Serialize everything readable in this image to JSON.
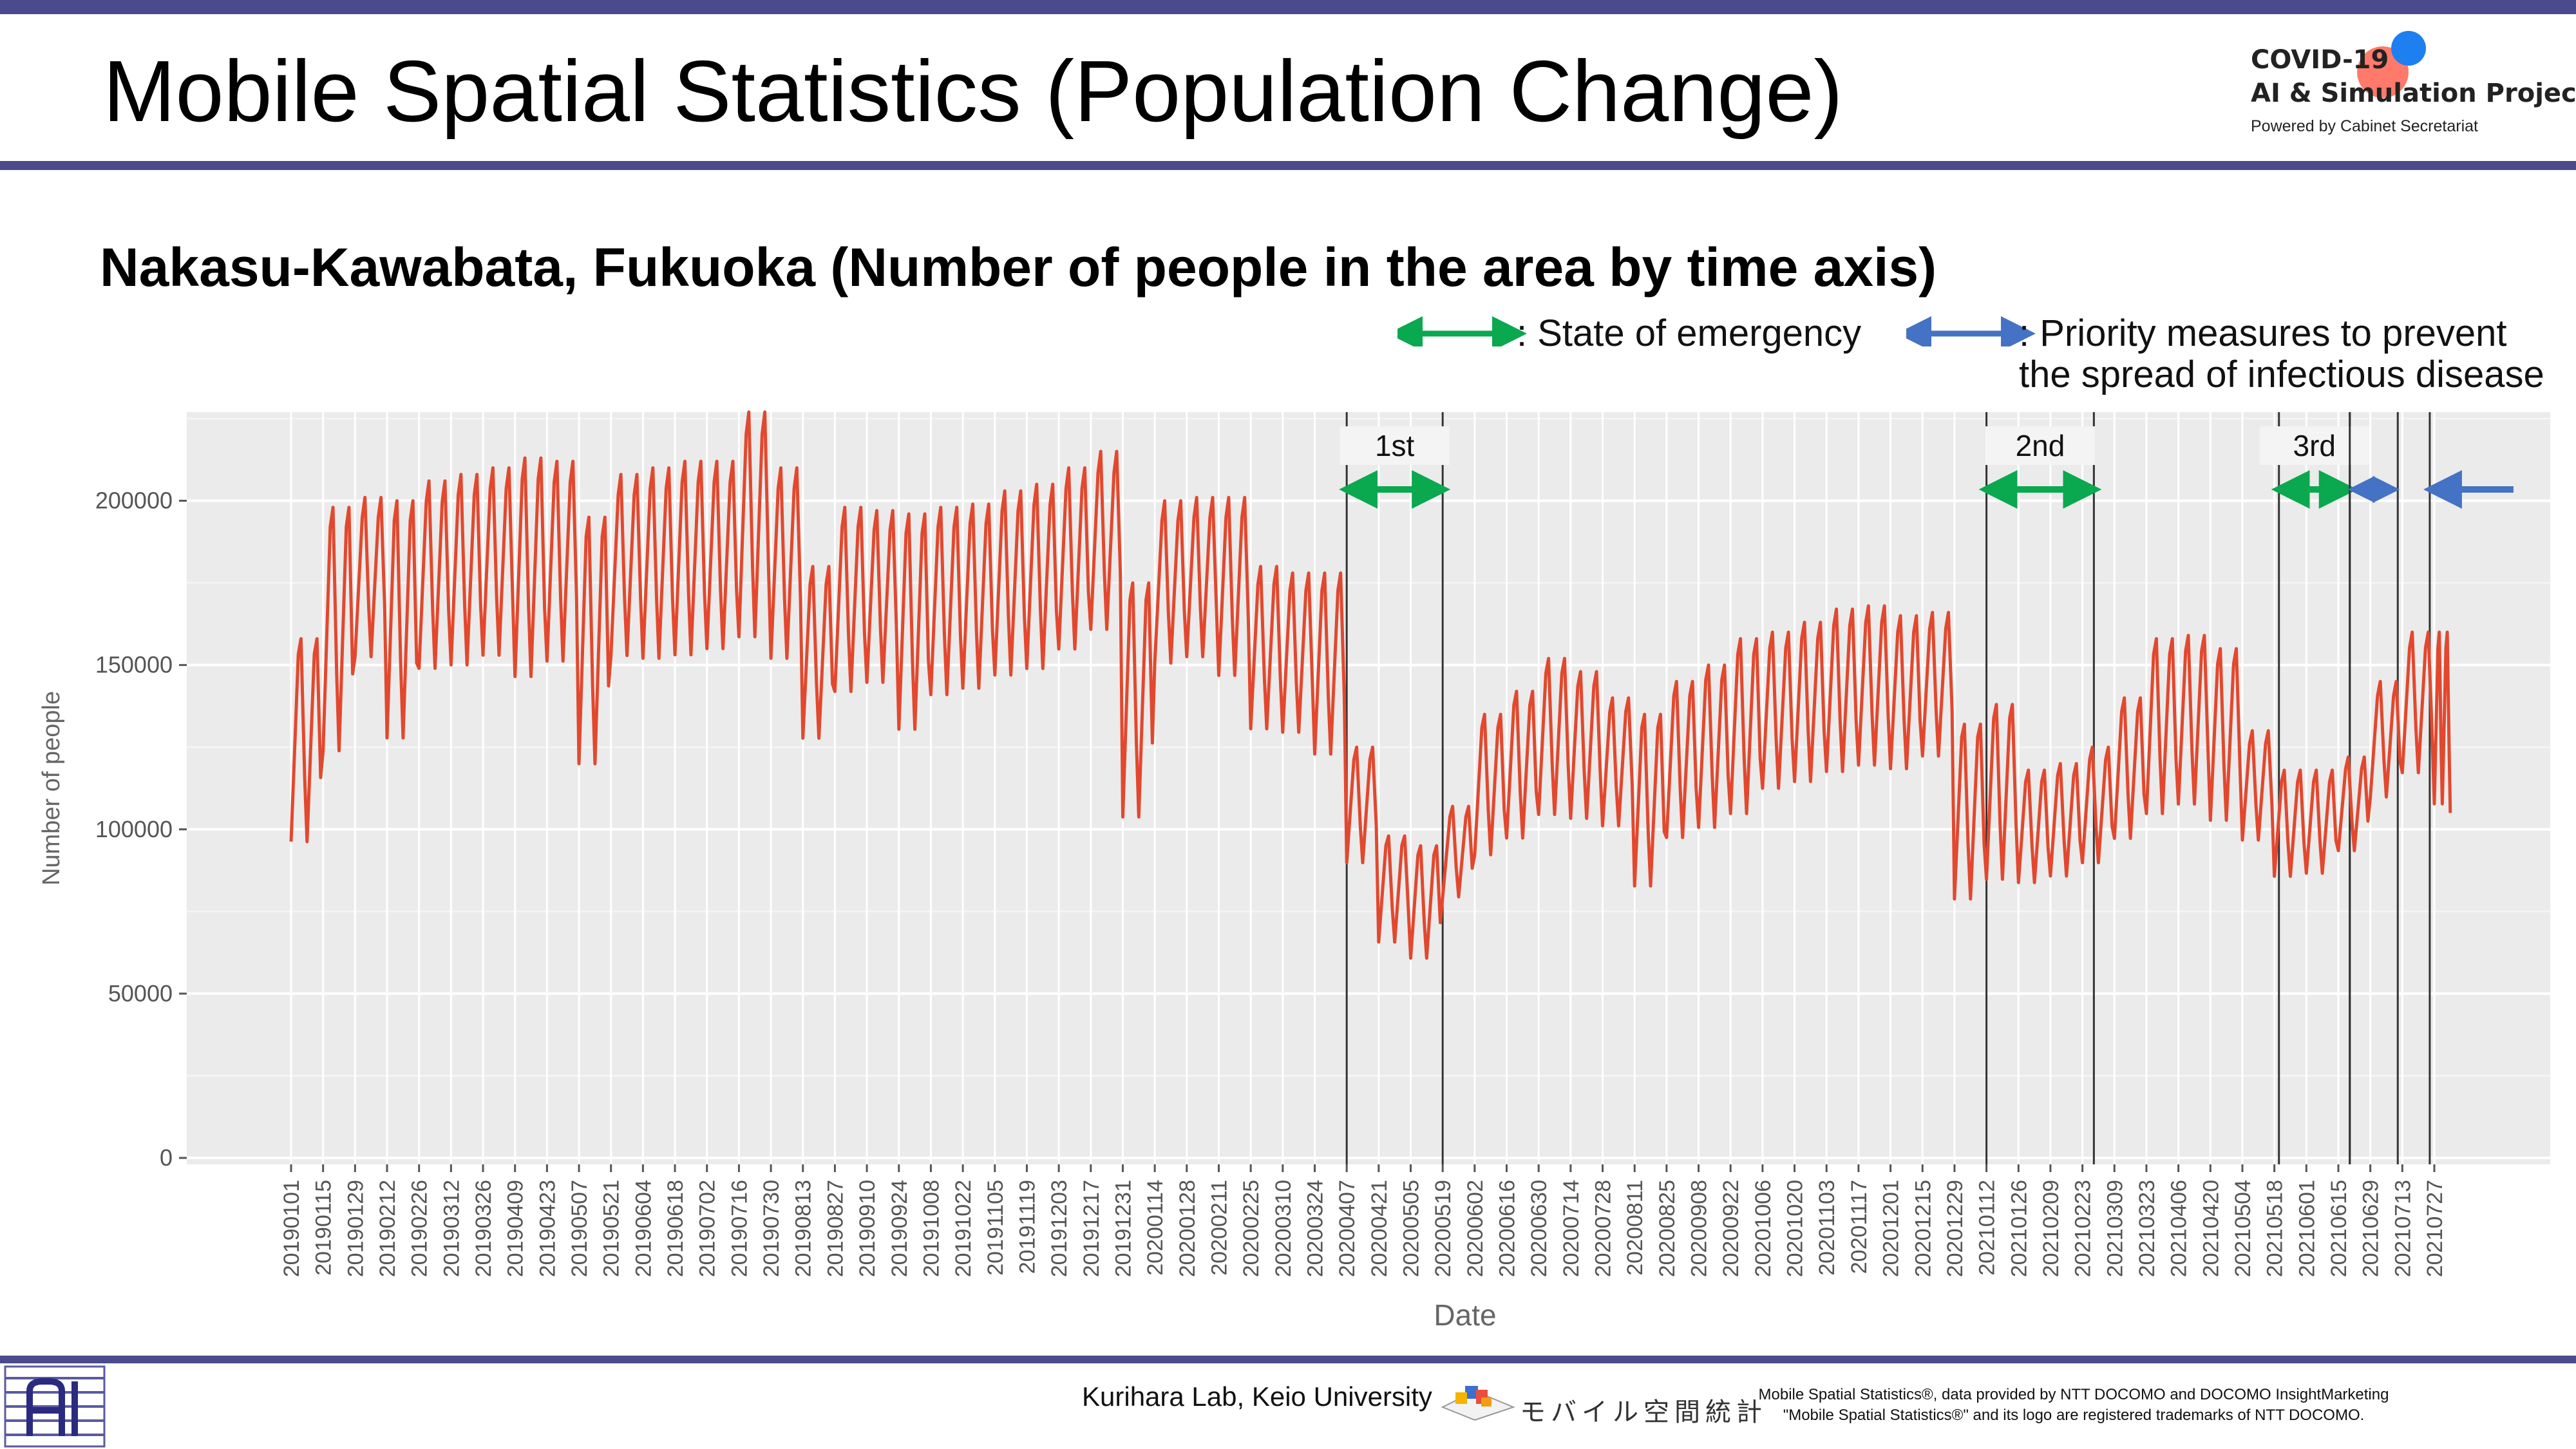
{
  "page": {
    "title": "Mobile Spatial Statistics (Population Change)",
    "subtitle": "Nakasu-Kawabata, Fukuoka (Number of people in the area by time axis)"
  },
  "logo": {
    "line1": "COVID-19",
    "line2": "AI & Simulation Project",
    "line3": "Powered by Cabinet Secretariat"
  },
  "legend": {
    "emergency": ": State of emergency",
    "priority": ": Priority measures to prevent the spread of infectious disease",
    "emergency_color": "#0aa84f",
    "priority_color": "#4472c4"
  },
  "footer": {
    "credit": "Kurihara Lab, Keio University",
    "mobile_logo_text": "モバイル空間統計",
    "note_line1": "Mobile Spatial Statistics®, data provided by NTT DOCOMO and DOCOMO InsightMarketing",
    "note_line2": "\"Mobile Spatial Statistics®\" and its logo are registered trademarks of NTT DOCOMO."
  },
  "chart_data": {
    "type": "line",
    "xlabel": "Date",
    "ylabel": "Number of people",
    "ylim": [
      0,
      230000
    ],
    "y_ticks": [
      0,
      50000,
      100000,
      150000,
      200000
    ],
    "y_tick_labels": [
      "0",
      "50000",
      "100000",
      "150000",
      "200000"
    ],
    "x_ticks": [
      "20190101",
      "20190115",
      "20190129",
      "20190212",
      "20190226",
      "20190312",
      "20190326",
      "20190409",
      "20190423",
      "20190507",
      "20190521",
      "20190604",
      "20190618",
      "20190702",
      "20190716",
      "20190730",
      "20190813",
      "20190827",
      "20190910",
      "20190924",
      "20191008",
      "20191022",
      "20191105",
      "20191119",
      "20191203",
      "20191217",
      "20191231",
      "20200114",
      "20200128",
      "20200211",
      "20200225",
      "20200310",
      "20200324",
      "20200407",
      "20200421",
      "20200505",
      "20200519",
      "20200602",
      "20200616",
      "20200630",
      "20200714",
      "20200728",
      "20200811",
      "20200825",
      "20200908",
      "20200922",
      "20201006",
      "20201020",
      "20201103",
      "20201117",
      "20201201",
      "20201215",
      "20201229",
      "20210112",
      "20210126",
      "20210209",
      "20210223",
      "20210309",
      "20210323",
      "20210406",
      "20210420",
      "20210504",
      "20210518",
      "20210601",
      "20210615",
      "20210629",
      "20210713",
      "20210727"
    ],
    "grid": true,
    "background": "#ebebeb",
    "line_color": "#e2482e",
    "series": [
      {
        "weekly_points": [
          {
            "date": "20190101",
            "low": 93000,
            "high": 158000
          },
          {
            "date": "20190115",
            "low": 120000,
            "high": 198000
          },
          {
            "date": "20190129",
            "low": 150000,
            "high": 201000
          },
          {
            "date": "20190212",
            "low": 124000,
            "high": 200000
          },
          {
            "date": "20190226",
            "low": 146000,
            "high": 206000
          },
          {
            "date": "20190312",
            "low": 147000,
            "high": 208000
          },
          {
            "date": "20190326",
            "low": 150000,
            "high": 210000
          },
          {
            "date": "20190409",
            "low": 143000,
            "high": 213000
          },
          {
            "date": "20190423",
            "low": 148000,
            "high": 212000
          },
          {
            "date": "20190507",
            "low": 116000,
            "high": 195000
          },
          {
            "date": "20190521",
            "low": 150000,
            "high": 208000
          },
          {
            "date": "20190604",
            "low": 149000,
            "high": 210000
          },
          {
            "date": "20190618",
            "low": 150000,
            "high": 212000
          },
          {
            "date": "20190702",
            "low": 152000,
            "high": 212000
          },
          {
            "date": "20190716",
            "low": 155000,
            "high": 227000
          },
          {
            "date": "20190730",
            "low": 149000,
            "high": 210000
          },
          {
            "date": "20190813",
            "low": 125000,
            "high": 180000
          },
          {
            "date": "20190827",
            "low": 139000,
            "high": 198000
          },
          {
            "date": "20190910",
            "low": 142000,
            "high": 197000
          },
          {
            "date": "20190924",
            "low": 127000,
            "high": 196000
          },
          {
            "date": "20191008",
            "low": 138000,
            "high": 198000
          },
          {
            "date": "20191022",
            "low": 140000,
            "high": 199000
          },
          {
            "date": "20191105",
            "low": 144000,
            "high": 203000
          },
          {
            "date": "20191119",
            "low": 146000,
            "high": 205000
          },
          {
            "date": "20191203",
            "low": 152000,
            "high": 210000
          },
          {
            "date": "20191217",
            "low": 158000,
            "high": 215000
          },
          {
            "date": "20191231",
            "low": 100000,
            "high": 175000
          },
          {
            "date": "20200114",
            "low": 148000,
            "high": 200000
          },
          {
            "date": "20200128",
            "low": 150000,
            "high": 201000
          },
          {
            "date": "20200211",
            "low": 144000,
            "high": 201000
          },
          {
            "date": "20200225",
            "low": 128000,
            "high": 180000
          },
          {
            "date": "20200310",
            "low": 127000,
            "high": 178000
          },
          {
            "date": "20200324",
            "low": 120000,
            "high": 178000
          },
          {
            "date": "20200407",
            "low": 88000,
            "high": 125000
          },
          {
            "date": "20200421",
            "low": 64000,
            "high": 98000
          },
          {
            "date": "20200505",
            "low": 59000,
            "high": 95000
          },
          {
            "date": "20200519",
            "low": 78000,
            "high": 107000
          },
          {
            "date": "20200602",
            "low": 90000,
            "high": 135000
          },
          {
            "date": "20200616",
            "low": 95000,
            "high": 142000
          },
          {
            "date": "20200630",
            "low": 102000,
            "high": 152000
          },
          {
            "date": "20200714",
            "low": 101000,
            "high": 148000
          },
          {
            "date": "20200728",
            "low": 99000,
            "high": 140000
          },
          {
            "date": "20200811",
            "low": 80000,
            "high": 135000
          },
          {
            "date": "20200825",
            "low": 95000,
            "high": 145000
          },
          {
            "date": "20200908",
            "low": 98000,
            "high": 150000
          },
          {
            "date": "20200922",
            "low": 102000,
            "high": 158000
          },
          {
            "date": "20201006",
            "low": 110000,
            "high": 160000
          },
          {
            "date": "20201020",
            "low": 112000,
            "high": 163000
          },
          {
            "date": "20201103",
            "low": 115000,
            "high": 167000
          },
          {
            "date": "20201117",
            "low": 117000,
            "high": 168000
          },
          {
            "date": "20201201",
            "low": 116000,
            "high": 165000
          },
          {
            "date": "20201215",
            "low": 120000,
            "high": 166000
          },
          {
            "date": "20201229",
            "low": 76000,
            "high": 132000
          },
          {
            "date": "20210112",
            "low": 82000,
            "high": 138000
          },
          {
            "date": "20210126",
            "low": 82000,
            "high": 118000
          },
          {
            "date": "20210209",
            "low": 84000,
            "high": 120000
          },
          {
            "date": "20210223",
            "low": 88000,
            "high": 125000
          },
          {
            "date": "20210309",
            "low": 95000,
            "high": 140000
          },
          {
            "date": "20210323",
            "low": 102000,
            "high": 158000
          },
          {
            "date": "20210406",
            "low": 105000,
            "high": 159000
          },
          {
            "date": "20210420",
            "low": 100000,
            "high": 155000
          },
          {
            "date": "20210504",
            "low": 95000,
            "high": 130000
          },
          {
            "date": "20210518",
            "low": 84000,
            "high": 118000
          },
          {
            "date": "20210601",
            "low": 85000,
            "high": 118000
          },
          {
            "date": "20210615",
            "low": 92000,
            "high": 122000
          },
          {
            "date": "20210629",
            "low": 108000,
            "high": 145000
          },
          {
            "date": "20210713",
            "low": 115000,
            "high": 160000
          },
          {
            "date": "20210727",
            "low": 105000,
            "high": 160000
          }
        ],
        "end": {
          "date": "20210803",
          "value": 105000
        }
      }
    ],
    "periods": [
      {
        "label": "1st",
        "kind": "emergency",
        "start": "20200407",
        "end": "20200519"
      },
      {
        "label": "2nd",
        "kind": "emergency",
        "start": "20210112",
        "end": "20210228"
      },
      {
        "label": "3rd",
        "kind": "emergency",
        "start": "20210520",
        "end": "20210620"
      },
      {
        "label": "",
        "kind": "priority",
        "start": "20210620",
        "end": "20210711"
      },
      {
        "label": "",
        "kind": "priority",
        "start": "20210725",
        "end": "open"
      }
    ]
  }
}
